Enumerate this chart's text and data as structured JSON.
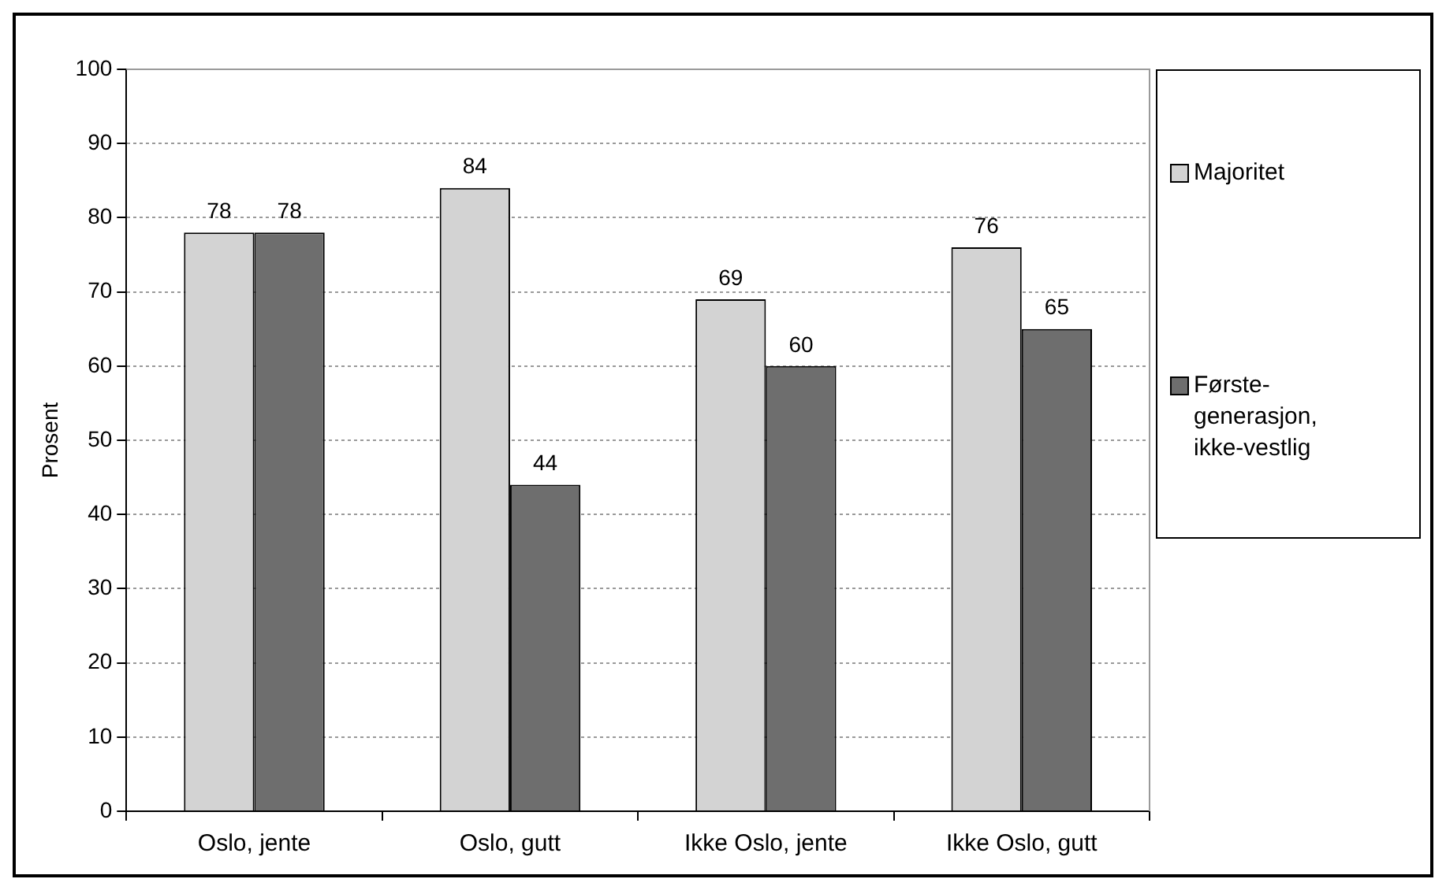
{
  "chart_data": {
    "type": "bar",
    "ylabel": "Prosent",
    "categories": [
      "Oslo, jente",
      "Oslo, gutt",
      "Ikke Oslo, jente",
      "Ikke Oslo, gutt"
    ],
    "series": [
      {
        "name": "Majoritet",
        "color": "#d3d3d3",
        "values": [
          78,
          84,
          69,
          76
        ]
      },
      {
        "name": "Første-generasjon, ikke-vestlig",
        "color": "#6e6e6e",
        "values": [
          78,
          44,
          60,
          65
        ]
      }
    ],
    "ylim": [
      0,
      100
    ],
    "yticks": [
      0,
      10,
      20,
      30,
      40,
      50,
      60,
      70,
      80,
      90,
      100
    ],
    "grid": "y",
    "legend": "right",
    "data_labels": true
  }
}
